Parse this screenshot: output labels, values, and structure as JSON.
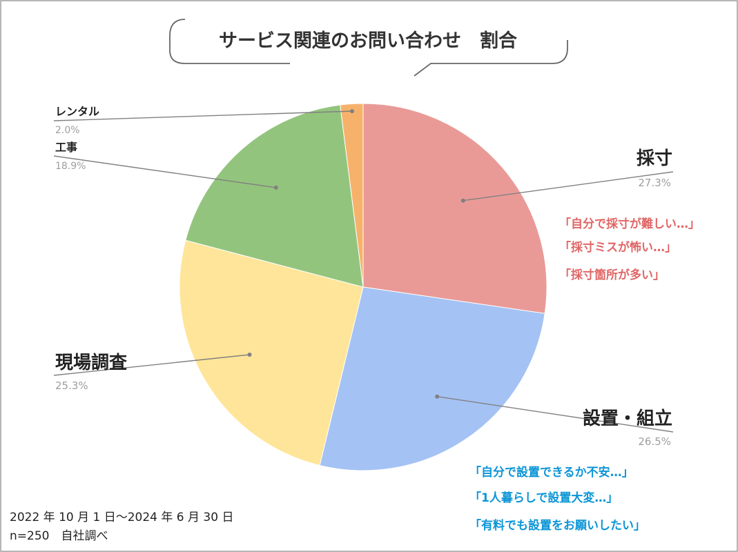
{
  "chart_data": {
    "type": "pie",
    "title": "サービス関連のお問い合わせ　割合",
    "slices": [
      {
        "name": "採寸",
        "value": 27.3,
        "label": "27.3%",
        "color": "#E99A97"
      },
      {
        "name": "設置・組立",
        "value": 26.5,
        "label": "26.5%",
        "color": "#A4C2F4"
      },
      {
        "name": "現場調査",
        "value": 25.3,
        "label": "25.3%",
        "color": "#FFE599"
      },
      {
        "name": "工事",
        "value": 18.9,
        "label": "18.9%",
        "color": "#93C47D"
      },
      {
        "name": "レンタル",
        "value": 2.0,
        "label": "2.0%",
        "color": "#F6B26B"
      }
    ],
    "start_angle": "12 o'clock",
    "direction": "clockwise",
    "legend": "none"
  },
  "annotations": {
    "saisun": {
      "color": "#E06666",
      "lines": [
        "「自分で採寸が難しい…」",
        "「採寸ミスが怖い…」",
        "「採寸箇所が多い」"
      ]
    },
    "secchi": {
      "color": "#0B95D6",
      "lines": [
        "「自分で設置できるか不安…」",
        "「1人暮らしで設置大変…」",
        "「有料でも設置をお願いしたい」"
      ]
    }
  },
  "footer": {
    "period": "2022 年 10 月 1 日～2024 年 6 月 30 日",
    "sample": "n=250　自社調べ"
  },
  "colors": {
    "border": "#9E9E9E",
    "leader": "#808080",
    "label_text": "#222222",
    "percent_text": "#9E9E9E",
    "slice_edge": "#ffffff"
  }
}
